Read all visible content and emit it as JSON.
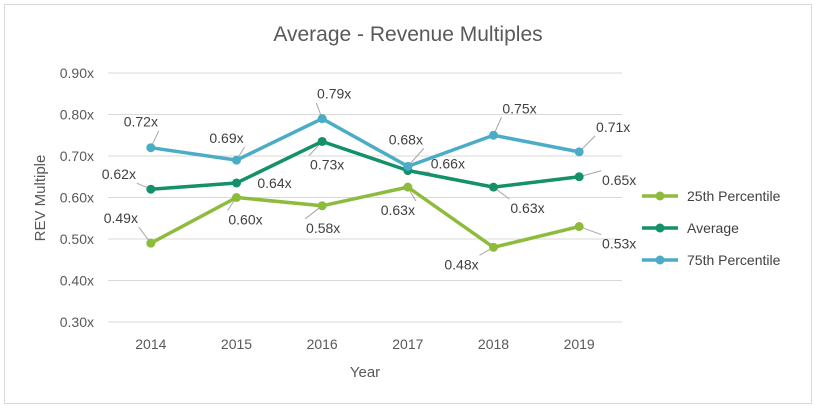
{
  "chart_data": {
    "type": "line",
    "title": "Average - Revenue Multiples",
    "xlabel": "Year",
    "ylabel": "REV Multiple",
    "categories": [
      "2014",
      "2015",
      "2016",
      "2017",
      "2018",
      "2019"
    ],
    "ylim": [
      0.3,
      0.9
    ],
    "yticks": [
      0.3,
      0.4,
      0.5,
      0.6,
      0.7,
      0.8,
      0.9
    ],
    "ytick_labels": [
      "0.30x",
      "0.40x",
      "0.50x",
      "0.60x",
      "0.70x",
      "0.80x",
      "0.90x"
    ],
    "grid": true,
    "legend_position": "right",
    "series": [
      {
        "name": "25th Percentile",
        "color": "#8dbb3c",
        "values": [
          0.49,
          0.6,
          0.58,
          0.625,
          0.48,
          0.53
        ],
        "labels": [
          "0.49x",
          "0.60x",
          "0.58x",
          "0.63x",
          "0.48x",
          "0.53x"
        ]
      },
      {
        "name": "Average",
        "color": "#14906a",
        "values": [
          0.62,
          0.635,
          0.735,
          0.665,
          0.625,
          0.65
        ],
        "labels": [
          "0.62x",
          "0.64x",
          "0.73x",
          "0.66x",
          "0.63x",
          "0.65x"
        ]
      },
      {
        "name": "75th Percentile",
        "color": "#4bacc6",
        "values": [
          0.72,
          0.69,
          0.79,
          0.675,
          0.75,
          0.71
        ],
        "labels": [
          "0.72x",
          "0.69x",
          "0.79x",
          "0.68x",
          "0.75x",
          "0.71x"
        ]
      }
    ]
  }
}
